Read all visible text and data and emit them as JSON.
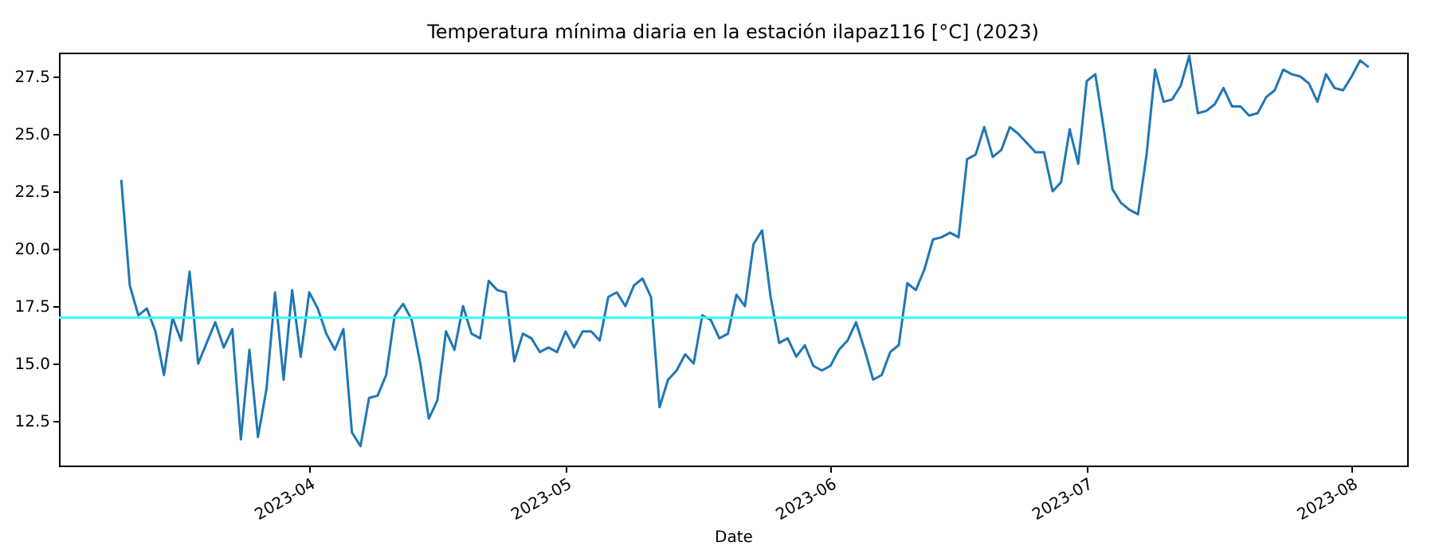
{
  "chart_data": {
    "type": "line",
    "title": "Temperatura mínima diaria en la estación ilapaz116 [°C] (2023)",
    "xlabel": "Date",
    "x": [
      "2023-03-10",
      "2023-03-11",
      "2023-03-12",
      "2023-03-13",
      "2023-03-14",
      "2023-03-15",
      "2023-03-16",
      "2023-03-17",
      "2023-03-18",
      "2023-03-19",
      "2023-03-20",
      "2023-03-21",
      "2023-03-22",
      "2023-03-23",
      "2023-03-24",
      "2023-03-25",
      "2023-03-26",
      "2023-03-27",
      "2023-03-28",
      "2023-03-29",
      "2023-03-30",
      "2023-03-31",
      "2023-04-01",
      "2023-04-02",
      "2023-04-03",
      "2023-04-04",
      "2023-04-05",
      "2023-04-06",
      "2023-04-07",
      "2023-04-08",
      "2023-04-09",
      "2023-04-10",
      "2023-04-11",
      "2023-04-12",
      "2023-04-13",
      "2023-04-14",
      "2023-04-15",
      "2023-04-16",
      "2023-04-17",
      "2023-04-18",
      "2023-04-19",
      "2023-04-20",
      "2023-04-21",
      "2023-04-22",
      "2023-04-23",
      "2023-04-24",
      "2023-04-25",
      "2023-04-26",
      "2023-04-27",
      "2023-04-28",
      "2023-04-29",
      "2023-04-30",
      "2023-05-01",
      "2023-05-02",
      "2023-05-03",
      "2023-05-04",
      "2023-05-05",
      "2023-05-06",
      "2023-05-07",
      "2023-05-08",
      "2023-05-09",
      "2023-05-10",
      "2023-05-11",
      "2023-05-12",
      "2023-05-13",
      "2023-05-14",
      "2023-05-15",
      "2023-05-16",
      "2023-05-17",
      "2023-05-18",
      "2023-05-19",
      "2023-05-20",
      "2023-05-21",
      "2023-05-22",
      "2023-05-23",
      "2023-05-24",
      "2023-05-25",
      "2023-05-26",
      "2023-05-27",
      "2023-05-28",
      "2023-05-29",
      "2023-05-30",
      "2023-05-31",
      "2023-06-01",
      "2023-06-02",
      "2023-06-03",
      "2023-06-04",
      "2023-06-05",
      "2023-06-06",
      "2023-06-07",
      "2023-06-08",
      "2023-06-09",
      "2023-06-10",
      "2023-06-11",
      "2023-06-12",
      "2023-06-13",
      "2023-06-14",
      "2023-06-15",
      "2023-06-16",
      "2023-06-17",
      "2023-06-18",
      "2023-06-19",
      "2023-06-20",
      "2023-06-21",
      "2023-06-22",
      "2023-06-23",
      "2023-06-24",
      "2023-06-25",
      "2023-06-26",
      "2023-06-27",
      "2023-06-28",
      "2023-06-29",
      "2023-06-30",
      "2023-07-01",
      "2023-07-02",
      "2023-07-03",
      "2023-07-04",
      "2023-07-05",
      "2023-07-06",
      "2023-07-07",
      "2023-07-08",
      "2023-07-09",
      "2023-07-10",
      "2023-07-11",
      "2023-07-12",
      "2023-07-13",
      "2023-07-14",
      "2023-07-15",
      "2023-07-16",
      "2023-07-17",
      "2023-07-18",
      "2023-07-19",
      "2023-07-20",
      "2023-07-21",
      "2023-07-22",
      "2023-07-23",
      "2023-07-24",
      "2023-07-25",
      "2023-07-26",
      "2023-07-27",
      "2023-07-28",
      "2023-07-29",
      "2023-07-30",
      "2023-07-31",
      "2023-08-01",
      "2023-08-02",
      "2023-08-03"
    ],
    "series": [
      {
        "color": "#1f77b4",
        "values": [
          23.0,
          18.4,
          17.1,
          17.4,
          16.4,
          14.5,
          17.0,
          16.0,
          19.0,
          15.0,
          15.9,
          16.8,
          15.7,
          16.5,
          11.7,
          15.6,
          11.8,
          13.9,
          18.1,
          14.3,
          18.2,
          15.3,
          18.1,
          17.4,
          16.3,
          15.6,
          16.5,
          12.0,
          11.4,
          13.5,
          13.6,
          14.5,
          17.1,
          17.6,
          16.9,
          15.0,
          12.6,
          13.4,
          16.4,
          15.6,
          17.5,
          16.3,
          16.1,
          18.6,
          18.2,
          18.1,
          15.1,
          16.3,
          16.1,
          15.5,
          15.7,
          15.5,
          16.4,
          15.7,
          16.4,
          16.4,
          16.0,
          17.9,
          18.1,
          17.5,
          18.4,
          18.7,
          17.9,
          13.1,
          14.3,
          14.7,
          15.4,
          15.0,
          17.1,
          16.9,
          16.1,
          16.3,
          18.0,
          17.5,
          20.2,
          20.8,
          17.9,
          15.9,
          16.1,
          15.3,
          15.8,
          14.9,
          14.7,
          14.9,
          15.6,
          16.0,
          16.8,
          15.6,
          14.3,
          14.5,
          15.5,
          15.8,
          18.5,
          18.2,
          19.1,
          20.4,
          20.5,
          20.7,
          20.5,
          23.9,
          24.1,
          25.3,
          24.0,
          24.3,
          25.3,
          25.0,
          24.6,
          24.2,
          24.2,
          22.5,
          22.9,
          25.2,
          23.7,
          27.3,
          27.6,
          25.2,
          22.6,
          22.0,
          21.7,
          21.5,
          24.1,
          27.8,
          26.4,
          26.5,
          27.1,
          28.4,
          25.9,
          26.0,
          26.3,
          27.0,
          26.2,
          26.2,
          25.8,
          25.9,
          26.6,
          26.9,
          27.8,
          27.6,
          27.5,
          27.2,
          26.4,
          27.6,
          27.0,
          26.9,
          27.5,
          28.2,
          27.9
        ]
      }
    ],
    "xlim": [
      "2023-03-02T17:00",
      "2023-08-07T12:00"
    ],
    "xticks": [
      {
        "value": "2023-04-01",
        "label": "2023-04"
      },
      {
        "value": "2023-05-01",
        "label": "2023-05"
      },
      {
        "value": "2023-06-01",
        "label": "2023-06"
      },
      {
        "value": "2023-07-01",
        "label": "2023-07"
      },
      {
        "value": "2023-08-01",
        "label": "2023-08"
      }
    ],
    "ylim": [
      10.56,
      28.54
    ],
    "yticks": [
      {
        "value": 12.5,
        "label": "12.5"
      },
      {
        "value": 15,
        "label": "15.0"
      },
      {
        "value": 17.5,
        "label": "17.5"
      },
      {
        "value": 20,
        "label": "20.0"
      },
      {
        "value": 22.5,
        "label": "22.5"
      },
      {
        "value": 25,
        "label": "25.0"
      },
      {
        "value": 27.5,
        "label": "27.5"
      }
    ],
    "ref_lines": [
      {
        "axis": "y",
        "value": 17.0,
        "label": null,
        "color": "#33ffff"
      }
    ],
    "grid": false,
    "marker": "none",
    "line_style": "solid"
  }
}
